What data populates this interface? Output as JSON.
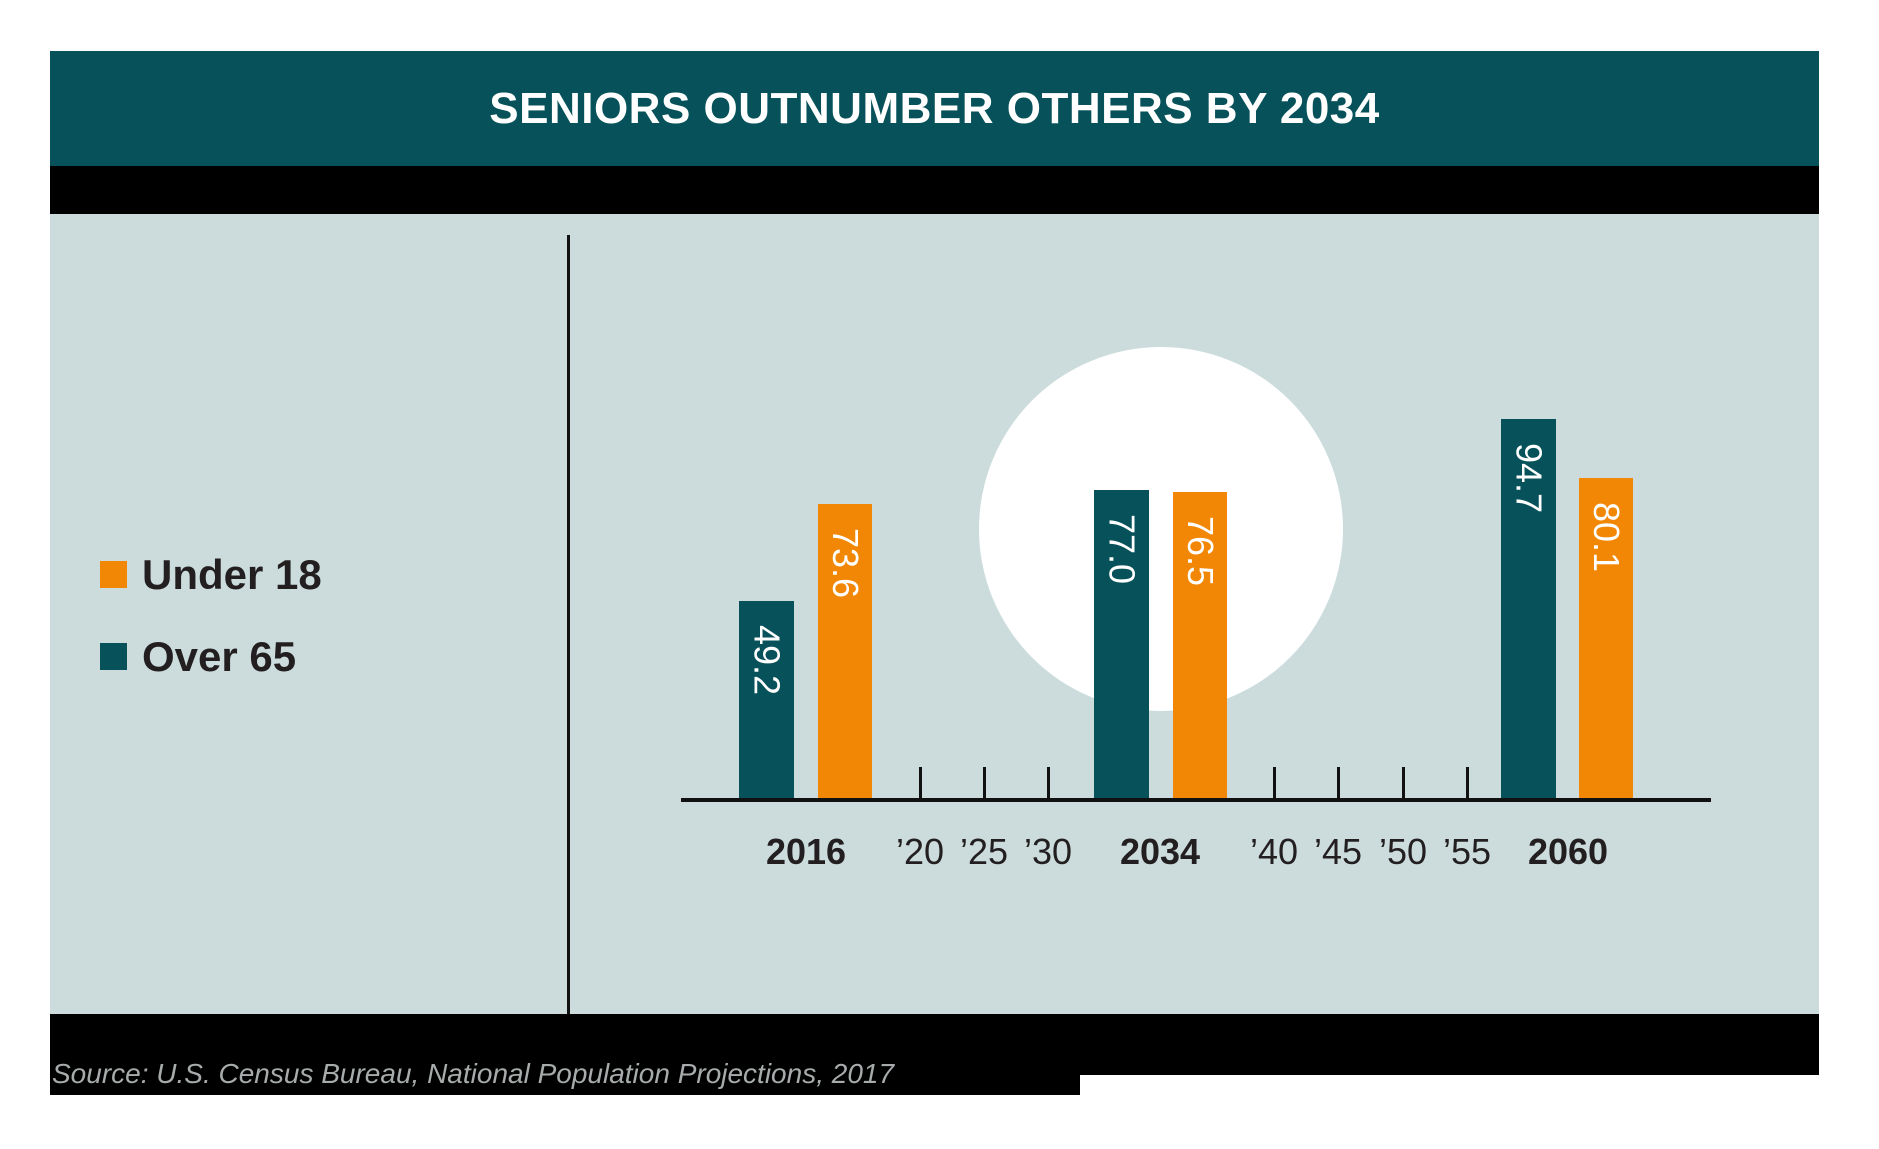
{
  "page": {
    "title": "SENIORS OUTNUMBER OTHERS BY 2034",
    "source": "Source: U.S. Census Bureau, National Population Projections, 2017"
  },
  "legend": {
    "items": [
      {
        "label": "Under 18",
        "color": "#f28705"
      },
      {
        "label": "Over 65",
        "color": "#07525a"
      }
    ]
  },
  "colors": {
    "header_bg": "#07525a",
    "panel_bg": "#ccdcdd",
    "accent_orange": "#f28705",
    "accent_teal": "#07525a",
    "bar_label_text": "#ffffff",
    "axis_text": "#231f20",
    "source_text": "#a7abac"
  },
  "chart_data": {
    "type": "bar",
    "title": "SENIORS OUTNUMBER OTHERS BY 2034",
    "categories": [
      "2016",
      "2034",
      "2060"
    ],
    "series": [
      {
        "name": "Over 65",
        "color": "#07525a",
        "values": [
          49.2,
          77.0,
          94.7
        ]
      },
      {
        "name": "Under 18",
        "color": "#f28705",
        "values": [
          73.6,
          76.5,
          80.1
        ]
      }
    ],
    "x_tick_labels": [
      "’20",
      "’25",
      "’30",
      "’40",
      "’45",
      "’50",
      "’55"
    ],
    "value_labels": [
      "49.2",
      "73.6",
      "77.0",
      "76.5",
      "94.7",
      "80.1"
    ],
    "ylim": [
      0,
      100
    ],
    "grid": false,
    "legend_position": "left",
    "annotation": "white circle highlight behind 2034 bars",
    "source": "Source: U.S. Census Bureau, National Population Projections, 2017"
  }
}
